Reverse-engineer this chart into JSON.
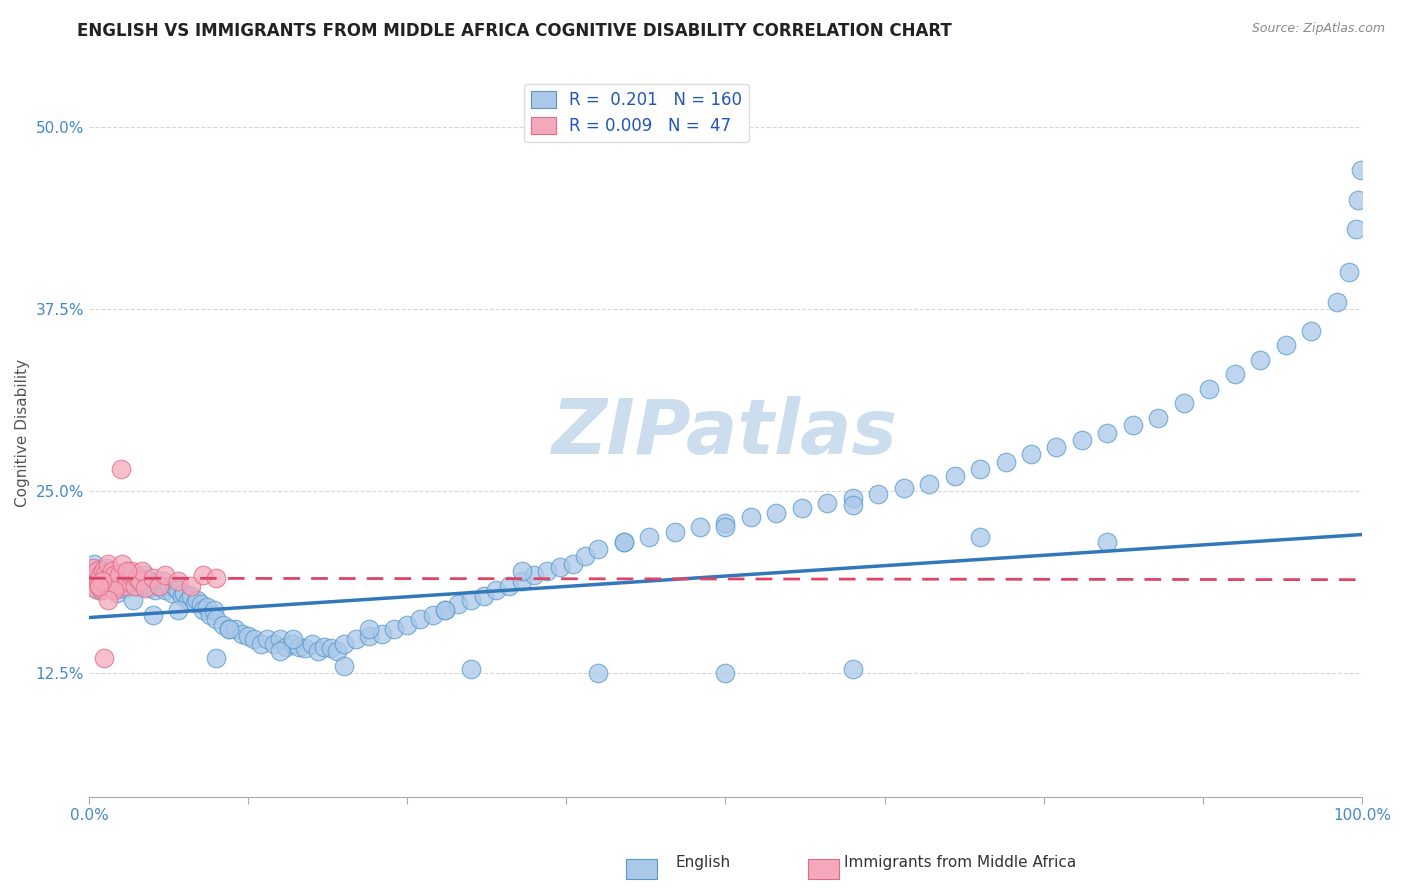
{
  "title": "ENGLISH VS IMMIGRANTS FROM MIDDLE AFRICA COGNITIVE DISABILITY CORRELATION CHART",
  "source": "Source: ZipAtlas.com",
  "ylabel": "Cognitive Disability",
  "r_english": 0.201,
  "n_english": 160,
  "r_immigrants": 0.009,
  "n_immigrants": 47,
  "xlim": [
    0.0,
    1.0
  ],
  "ylim": [
    0.04,
    0.54
  ],
  "yticks": [
    0.125,
    0.25,
    0.375,
    0.5
  ],
  "ytick_labels": [
    "12.5%",
    "25.0%",
    "37.5%",
    "50.0%"
  ],
  "color_english": "#aac8e8",
  "color_english_edge": "#5599cc",
  "color_english_line": "#3377bb",
  "color_immigrants": "#f5a8bb",
  "color_immigrants_edge": "#e06888",
  "color_immigrants_line": "#dd4466",
  "background_color": "#ffffff",
  "watermark": "ZIPatlas",
  "watermark_color": "#ccdded",
  "legend_r_color": "#2255bb",
  "title_fontsize": 12,
  "label_fontsize": 11,
  "tick_fontsize": 11,
  "english_x": [
    0.001,
    0.002,
    0.003,
    0.004,
    0.005,
    0.006,
    0.007,
    0.008,
    0.009,
    0.01,
    0.01,
    0.011,
    0.012,
    0.013,
    0.014,
    0.015,
    0.016,
    0.017,
    0.018,
    0.019,
    0.02,
    0.02,
    0.021,
    0.022,
    0.023,
    0.024,
    0.025,
    0.026,
    0.027,
    0.028,
    0.029,
    0.03,
    0.031,
    0.032,
    0.033,
    0.035,
    0.036,
    0.037,
    0.038,
    0.04,
    0.041,
    0.042,
    0.044,
    0.045,
    0.047,
    0.048,
    0.05,
    0.052,
    0.055,
    0.058,
    0.06,
    0.063,
    0.065,
    0.068,
    0.07,
    0.073,
    0.075,
    0.078,
    0.08,
    0.083,
    0.085,
    0.088,
    0.09,
    0.093,
    0.095,
    0.098,
    0.1,
    0.105,
    0.11,
    0.115,
    0.12,
    0.125,
    0.13,
    0.135,
    0.14,
    0.145,
    0.15,
    0.155,
    0.16,
    0.165,
    0.17,
    0.175,
    0.18,
    0.185,
    0.19,
    0.195,
    0.2,
    0.21,
    0.22,
    0.23,
    0.24,
    0.25,
    0.26,
    0.27,
    0.28,
    0.29,
    0.3,
    0.31,
    0.32,
    0.33,
    0.34,
    0.35,
    0.36,
    0.37,
    0.38,
    0.39,
    0.4,
    0.42,
    0.44,
    0.46,
    0.48,
    0.5,
    0.52,
    0.54,
    0.56,
    0.58,
    0.6,
    0.62,
    0.64,
    0.66,
    0.68,
    0.7,
    0.72,
    0.74,
    0.76,
    0.78,
    0.8,
    0.82,
    0.84,
    0.86,
    0.88,
    0.9,
    0.92,
    0.94,
    0.96,
    0.98,
    0.99,
    0.995,
    0.997,
    0.999,
    0.05,
    0.1,
    0.15,
    0.2,
    0.3,
    0.4,
    0.5,
    0.6,
    0.7,
    0.8,
    0.035,
    0.07,
    0.11,
    0.16,
    0.22,
    0.28,
    0.34,
    0.42,
    0.5,
    0.6
  ],
  "english_y": [
    0.19,
    0.195,
    0.185,
    0.2,
    0.188,
    0.192,
    0.182,
    0.196,
    0.183,
    0.187,
    0.193,
    0.186,
    0.191,
    0.184,
    0.197,
    0.185,
    0.19,
    0.183,
    0.187,
    0.194,
    0.189,
    0.193,
    0.185,
    0.18,
    0.192,
    0.186,
    0.19,
    0.183,
    0.188,
    0.194,
    0.187,
    0.19,
    0.184,
    0.192,
    0.186,
    0.189,
    0.193,
    0.185,
    0.187,
    0.184,
    0.19,
    0.186,
    0.192,
    0.185,
    0.188,
    0.183,
    0.187,
    0.182,
    0.185,
    0.188,
    0.182,
    0.185,
    0.18,
    0.184,
    0.182,
    0.178,
    0.18,
    0.175,
    0.178,
    0.173,
    0.175,
    0.172,
    0.168,
    0.17,
    0.165,
    0.168,
    0.162,
    0.158,
    0.155,
    0.155,
    0.152,
    0.15,
    0.148,
    0.145,
    0.148,
    0.145,
    0.148,
    0.143,
    0.145,
    0.143,
    0.142,
    0.145,
    0.14,
    0.143,
    0.142,
    0.14,
    0.145,
    0.148,
    0.15,
    0.152,
    0.155,
    0.158,
    0.162,
    0.165,
    0.168,
    0.172,
    0.175,
    0.178,
    0.182,
    0.185,
    0.188,
    0.192,
    0.195,
    0.198,
    0.2,
    0.205,
    0.21,
    0.215,
    0.218,
    0.222,
    0.225,
    0.228,
    0.232,
    0.235,
    0.238,
    0.242,
    0.245,
    0.248,
    0.252,
    0.255,
    0.26,
    0.265,
    0.27,
    0.275,
    0.28,
    0.285,
    0.29,
    0.295,
    0.3,
    0.31,
    0.32,
    0.33,
    0.34,
    0.35,
    0.36,
    0.38,
    0.4,
    0.43,
    0.45,
    0.47,
    0.165,
    0.135,
    0.14,
    0.13,
    0.128,
    0.125,
    0.125,
    0.128,
    0.218,
    0.215,
    0.175,
    0.168,
    0.155,
    0.148,
    0.155,
    0.168,
    0.195,
    0.215,
    0.225,
    0.24
  ],
  "immigrants_x": [
    0.001,
    0.002,
    0.003,
    0.004,
    0.005,
    0.006,
    0.007,
    0.008,
    0.009,
    0.01,
    0.011,
    0.012,
    0.013,
    0.014,
    0.015,
    0.016,
    0.017,
    0.018,
    0.019,
    0.02,
    0.021,
    0.022,
    0.024,
    0.026,
    0.028,
    0.03,
    0.032,
    0.034,
    0.036,
    0.038,
    0.04,
    0.042,
    0.044,
    0.05,
    0.055,
    0.06,
    0.07,
    0.08,
    0.09,
    0.1,
    0.025,
    0.03,
    0.02,
    0.015,
    0.01,
    0.012,
    0.008
  ],
  "immigrants_y": [
    0.193,
    0.186,
    0.197,
    0.183,
    0.19,
    0.195,
    0.188,
    0.185,
    0.192,
    0.182,
    0.195,
    0.187,
    0.193,
    0.185,
    0.2,
    0.19,
    0.185,
    0.195,
    0.183,
    0.192,
    0.188,
    0.185,
    0.192,
    0.2,
    0.185,
    0.188,
    0.192,
    0.195,
    0.185,
    0.19,
    0.188,
    0.195,
    0.183,
    0.19,
    0.185,
    0.192,
    0.188,
    0.185,
    0.192,
    0.19,
    0.265,
    0.195,
    0.182,
    0.175,
    0.188,
    0.135,
    0.185
  ],
  "eng_trend_x": [
    0.0,
    1.0
  ],
  "eng_trend_y": [
    0.163,
    0.22
  ],
  "imm_trend_x": [
    0.0,
    1.0
  ],
  "imm_trend_y": [
    0.19,
    0.189
  ]
}
